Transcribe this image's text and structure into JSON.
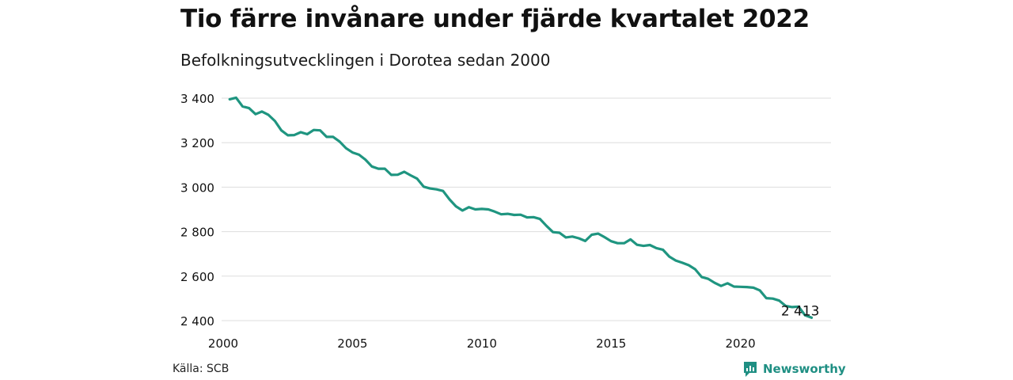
{
  "title": "Tio färre invånare under fjärde kvartalet 2022",
  "subtitle": "Befolkningsutvecklingen i Dorotea sedan 2000",
  "source": "Källa: SCB",
  "brand": {
    "name": "Newsworthy",
    "icon": "newsworthy-logo-icon",
    "color": "#1f8f83"
  },
  "colors": {
    "line": "#1f9580",
    "grid": "#dddddd",
    "text": "#111111"
  },
  "chart_data": {
    "type": "line",
    "title": "Tio färre invånare under fjärde kvartalet 2022",
    "subtitle": "Befolkningsutvecklingen i Dorotea sedan 2000",
    "xlim": [
      2000,
      2023.5
    ],
    "ylim": [
      2400,
      3400
    ],
    "x_ticks": [
      2000,
      2005,
      2010,
      2015,
      2020
    ],
    "x_tick_labels": [
      "2000",
      "2005",
      "2010",
      "2015",
      "2020"
    ],
    "y_ticks": [
      2400,
      2600,
      2800,
      3000,
      3200,
      3400
    ],
    "y_tick_labels": [
      "2 400",
      "2 600",
      "2 800",
      "3 000",
      "3 200",
      "3 400"
    ],
    "grid": true,
    "legend": "none",
    "annotation": {
      "x": 2022.75,
      "y": 2413,
      "label": "2 413"
    },
    "series": [
      {
        "x": [
          2000.25,
          2000.5,
          2000.75,
          2001.0,
          2001.25,
          2001.5,
          2001.75,
          2002.0,
          2002.25,
          2002.5,
          2002.75,
          2003.0,
          2003.25,
          2003.5,
          2003.75,
          2004.0,
          2004.25,
          2004.5,
          2004.75,
          2005.0,
          2005.25,
          2005.5,
          2005.75,
          2006.0,
          2006.25,
          2006.5,
          2006.75,
          2007.0,
          2007.25,
          2007.5,
          2007.75,
          2008.0,
          2008.25,
          2008.5,
          2008.75,
          2009.0,
          2009.25,
          2009.5,
          2009.75,
          2010.0,
          2010.25,
          2010.5,
          2010.75,
          2011.0,
          2011.25,
          2011.5,
          2011.75,
          2012.0,
          2012.25,
          2012.5,
          2012.75,
          2013.0,
          2013.25,
          2013.5,
          2013.75,
          2014.0,
          2014.25,
          2014.5,
          2014.75,
          2015.0,
          2015.25,
          2015.5,
          2015.75,
          2016.0,
          2016.25,
          2016.5,
          2016.75,
          2017.0,
          2017.25,
          2017.5,
          2017.75,
          2018.0,
          2018.25,
          2018.5,
          2018.75,
          2019.0,
          2019.25,
          2019.5,
          2019.75,
          2020.0,
          2020.25,
          2020.5,
          2020.75,
          2021.0,
          2021.25,
          2021.5,
          2021.75,
          2022.0,
          2022.25,
          2022.5,
          2022.75
        ],
        "values": [
          3395,
          3402,
          3363,
          3355,
          3328,
          3340,
          3325,
          3297,
          3255,
          3233,
          3234,
          3247,
          3238,
          3257,
          3255,
          3226,
          3226,
          3205,
          3175,
          3156,
          3146,
          3124,
          3093,
          3083,
          3083,
          3055,
          3056,
          3069,
          3053,
          3038,
          3002,
          2994,
          2990,
          2983,
          2945,
          2914,
          2895,
          2910,
          2900,
          2902,
          2900,
          2890,
          2878,
          2880,
          2875,
          2876,
          2864,
          2865,
          2857,
          2826,
          2798,
          2795,
          2774,
          2778,
          2770,
          2758,
          2786,
          2791,
          2775,
          2757,
          2748,
          2748,
          2765,
          2741,
          2736,
          2740,
          2726,
          2719,
          2688,
          2670,
          2660,
          2649,
          2631,
          2596,
          2588,
          2570,
          2556,
          2568,
          2553,
          2552,
          2551,
          2548,
          2536,
          2501,
          2499,
          2490,
          2466,
          2461,
          2463,
          2424,
          2413
        ]
      }
    ]
  }
}
